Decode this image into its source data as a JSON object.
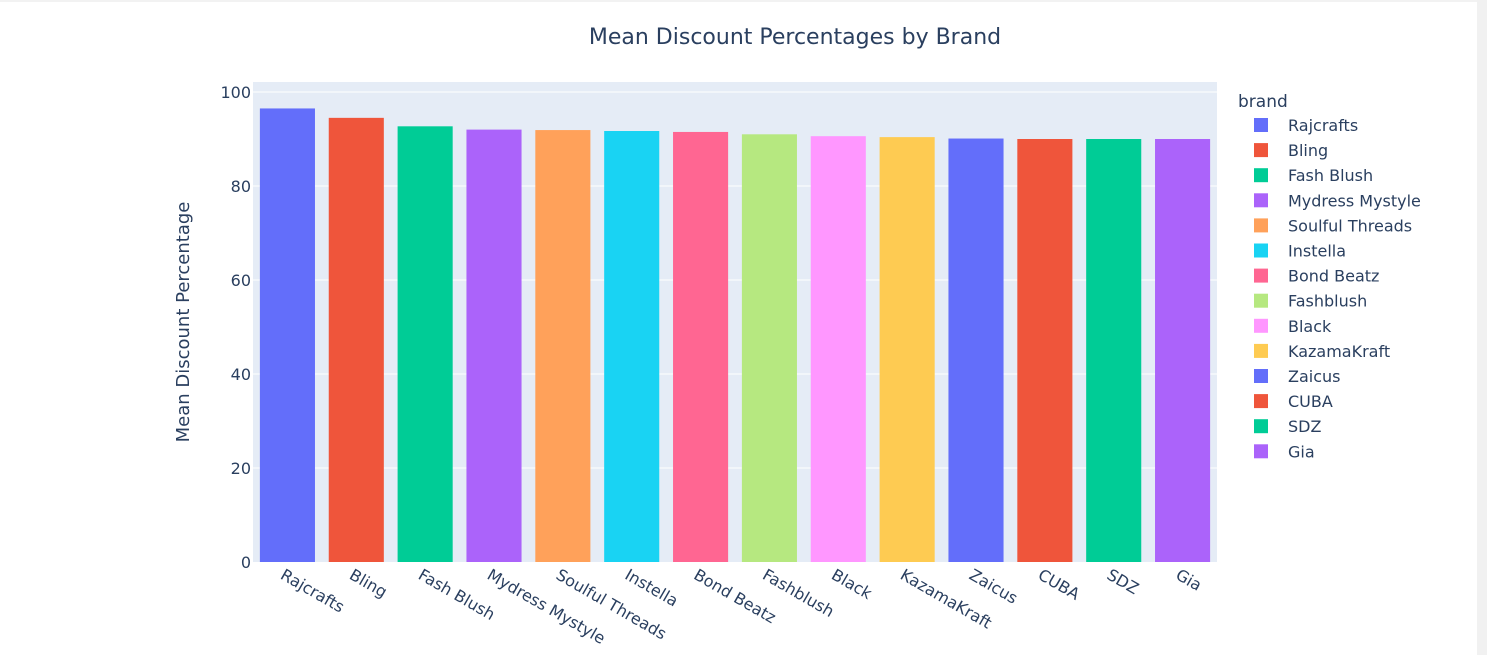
{
  "chart_data": {
    "type": "bar",
    "title": "Mean Discount Percentages by Brand",
    "xlabel": "",
    "ylabel": "Mean Discount Percentage",
    "ylim": [
      0,
      100
    ],
    "yticks": [
      0,
      20,
      40,
      60,
      80,
      100
    ],
    "categories": [
      "Rajcrafts",
      "Bling",
      "Fash Blush",
      "Mydress Mystyle",
      "Soulful Threads",
      "Instella",
      "Bond Beatz",
      "Fashblush",
      "Black",
      "KazamaKraft",
      "Zaicus",
      "CUBA",
      "SDZ",
      "Gia"
    ],
    "values": [
      96.5,
      94.5,
      92.7,
      92.0,
      91.9,
      91.7,
      91.5,
      91.0,
      90.6,
      90.4,
      90.1,
      90.0,
      90.0,
      90.0
    ],
    "colors": [
      "#636efa",
      "#EF553B",
      "#00cc96",
      "#ab63fa",
      "#FFA15A",
      "#19d3f3",
      "#FF6692",
      "#B6E880",
      "#FF97FF",
      "#FECB52",
      "#636efa",
      "#EF553B",
      "#00cc96",
      "#ab63fa"
    ],
    "legend": {
      "title": "brand",
      "placement": "right"
    },
    "grid": true,
    "plot_background": "#e5ecf6"
  }
}
